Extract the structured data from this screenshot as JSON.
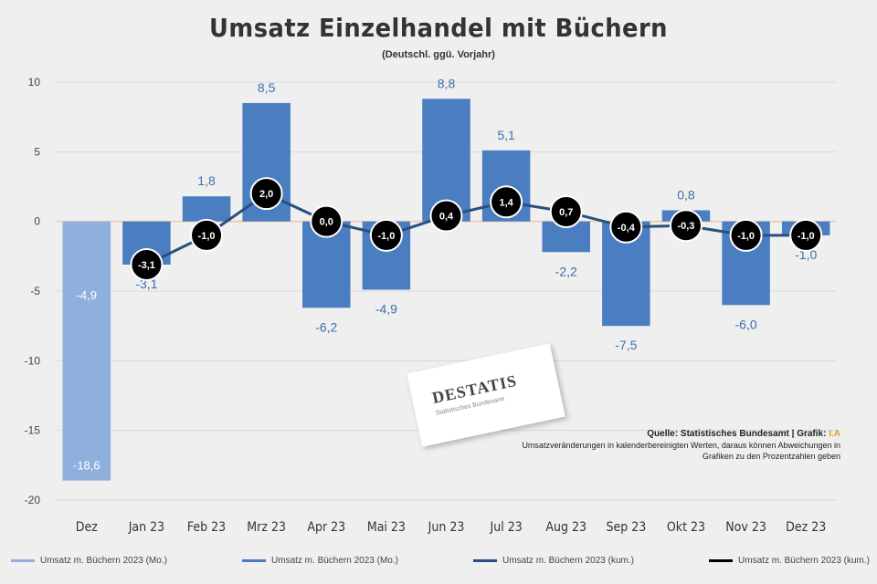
{
  "chart_data": {
    "type": "bar",
    "title": "Umsatz Einzelhandel mit Büchern",
    "subtitle": "(Deutschl. ggü. Vorjahr)",
    "ylim": [
      -20,
      10
    ],
    "yticks": [
      "10",
      "5",
      "0",
      "-5",
      "-10",
      "-15",
      "-20"
    ],
    "ytick_values": [
      10,
      5,
      0,
      -5,
      -10,
      -15,
      -20
    ],
    "categories": [
      "Dez",
      "Jan 23",
      "Feb 23",
      "Mrz 23",
      "Apr 23",
      "Mai 23",
      "Jun 23",
      "Jul 23",
      "Aug 23",
      "Sep 23",
      "Okt 23",
      "Nov 23",
      "Dez 23"
    ],
    "grid": true,
    "series": [
      {
        "name": "Umsatz m. Büchern 2023 (Mo.)",
        "kind": "bar",
        "color": "#8fb0dc",
        "values": [
          -18.6,
          null,
          null,
          null,
          null,
          null,
          null,
          null,
          null,
          null,
          null,
          null,
          null
        ],
        "labels": [
          "-18,6",
          "",
          "",
          "",
          "",
          "",
          "",
          "",
          "",
          "",
          "",
          "",
          ""
        ]
      },
      {
        "name": "Umsatz m. Büchern 2023 (Mo.)",
        "kind": "bar",
        "color": "#4a7ec0",
        "values": [
          null,
          -3.1,
          1.8,
          8.5,
          -6.2,
          -4.9,
          8.8,
          5.1,
          -2.2,
          -7.5,
          0.8,
          -6.0,
          -1.0
        ],
        "labels": [
          "",
          "-3,1",
          "1,8",
          "8,5",
          "-6,2",
          "-4,9",
          "8,8",
          "5,1",
          "-2,2",
          "-7,5",
          "0,8",
          "-6,0",
          "-1,0"
        ]
      },
      {
        "name": "Umsatz m. Büchern 2023 (kum.)",
        "kind": "line",
        "color": "#2a4f80",
        "values": [
          null,
          -3.1,
          -1.0,
          2.0,
          0.0,
          -1.0,
          0.4,
          1.4,
          0.7,
          -0.4,
          -0.3,
          -1.0,
          -1.0
        ],
        "labels": [
          "",
          "-3,1",
          "-1,0",
          "2,0",
          "0,0",
          "-1,0",
          "0,4",
          "1,4",
          "0,7",
          "-0,4",
          "-0,3",
          "-1,0",
          "-1,0"
        ]
      }
    ],
    "bar_outside_labels": [
      "-4,9",
      "",
      "",
      "",
      "",
      "",
      "",
      "",
      "",
      "",
      "",
      "",
      ""
    ],
    "legend": [
      {
        "label": "Umsatz m. Büchern 2023 (Mo.)",
        "color": "#8fb0dc"
      },
      {
        "label": "Umsatz m. Büchern 2023 (Mo.)",
        "color": "#4a7ec0"
      },
      {
        "label": "Umsatz m. Büchern 2023 (kum.)",
        "color": "#2a4f80"
      },
      {
        "label": "Umsatz m. Büchern 2023 (kum.)",
        "color": "#000000"
      }
    ],
    "legend_position": "bottom"
  },
  "source": {
    "prefix": "Quelle: Statistisches Bundesamt | Grafik: ",
    "accent": "I.A",
    "note": "Umsatzveränderungen in kalenderbereinigten Werten, daraus können Abweichungen in Grafiken zu den Prozentzahlen geben"
  },
  "logo": {
    "text": "DESTATIS",
    "sub": "Statistisches Bundesamt"
  }
}
